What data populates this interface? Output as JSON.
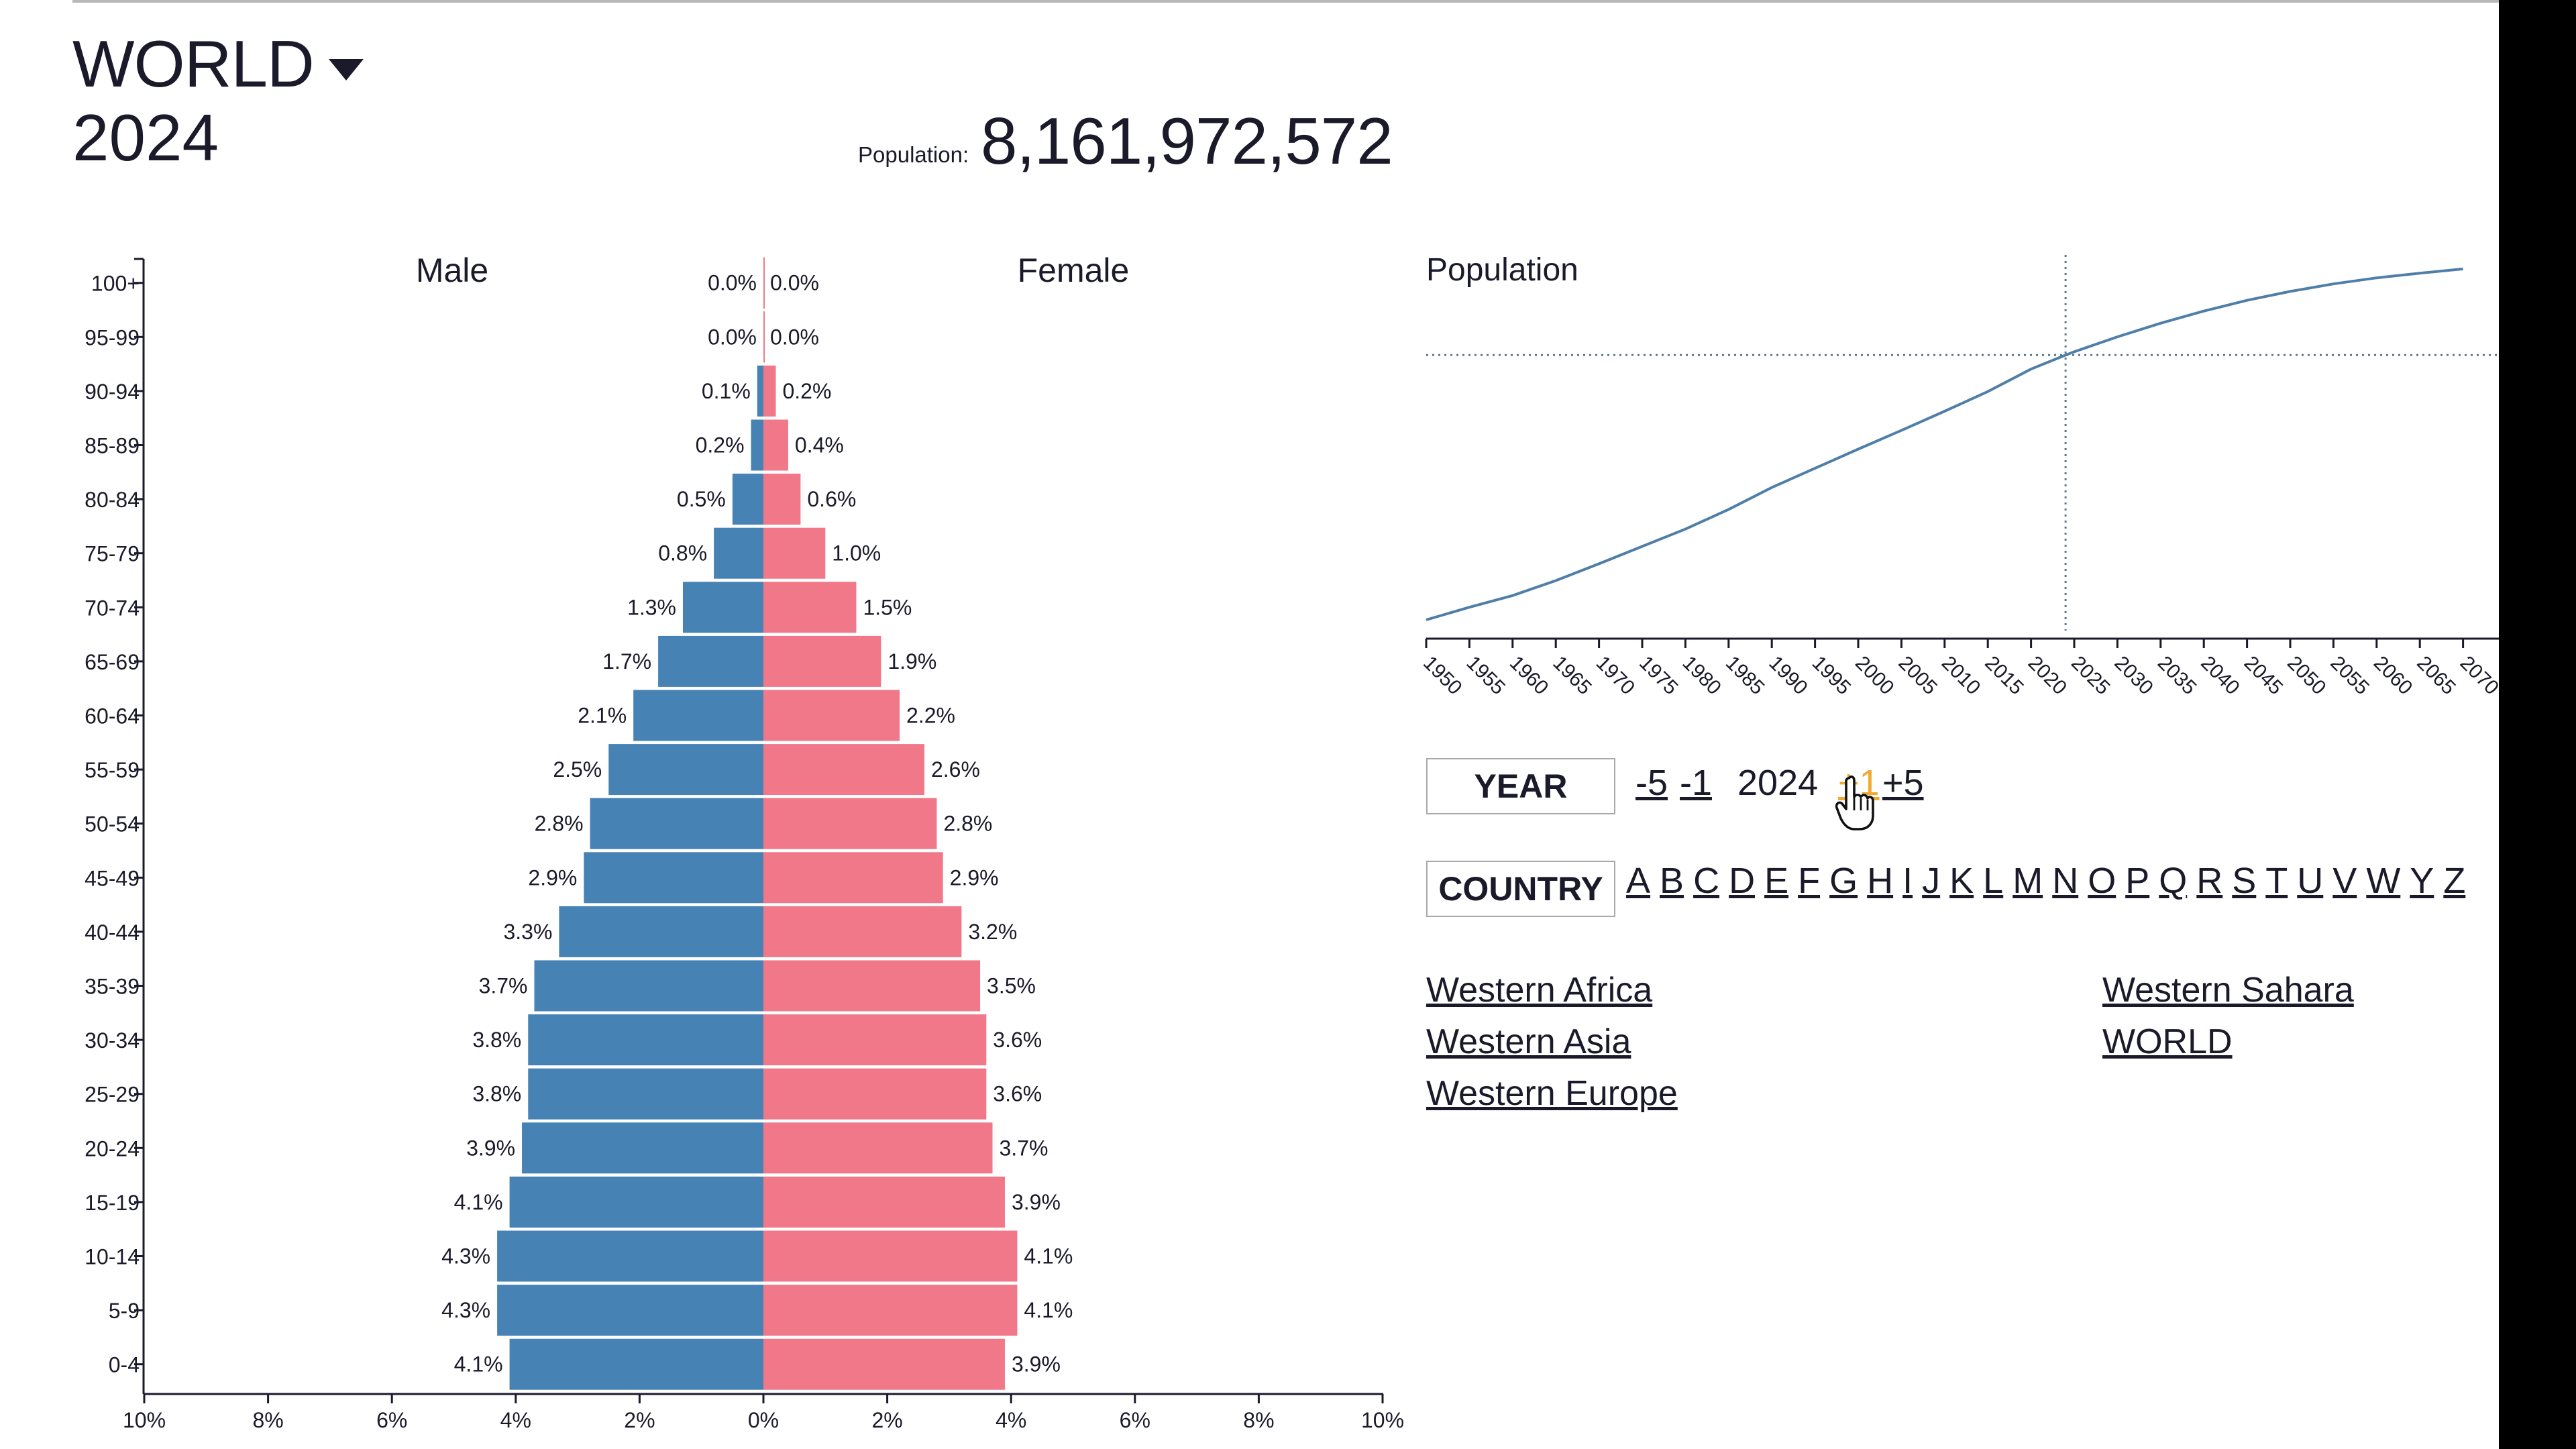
{
  "header": {
    "region": "WORLD",
    "year": "2024",
    "population_label": "Population:",
    "population_value": "8,161,972,572"
  },
  "chart_data": [
    {
      "type": "bar",
      "orientation": "horizontal",
      "title": "",
      "series": [
        {
          "name": "Male",
          "color": "#4682b4",
          "values": [
            4.1,
            4.3,
            4.3,
            4.1,
            3.9,
            3.8,
            3.8,
            3.7,
            3.3,
            2.9,
            2.8,
            2.5,
            2.1,
            1.7,
            1.3,
            0.8,
            0.5,
            0.2,
            0.1,
            0.0,
            0.0
          ]
        },
        {
          "name": "Female",
          "color": "#f07888",
          "values": [
            3.9,
            4.1,
            4.1,
            3.9,
            3.7,
            3.6,
            3.6,
            3.5,
            3.2,
            2.9,
            2.8,
            2.6,
            2.2,
            1.9,
            1.5,
            1.0,
            0.6,
            0.4,
            0.2,
            0.0,
            0.0
          ]
        }
      ],
      "categories": [
        "0-4",
        "5-9",
        "10-14",
        "15-19",
        "20-24",
        "25-29",
        "30-34",
        "35-39",
        "40-44",
        "45-49",
        "50-54",
        "55-59",
        "60-64",
        "65-69",
        "70-74",
        "75-79",
        "80-84",
        "85-89",
        "90-94",
        "95-99",
        "100+"
      ],
      "data_labels": {
        "male": [
          "4.1%",
          "4.3%",
          "4.3%",
          "4.1%",
          "3.9%",
          "3.8%",
          "3.8%",
          "3.7%",
          "3.3%",
          "2.9%",
          "2.8%",
          "2.5%",
          "2.1%",
          "1.7%",
          "1.3%",
          "0.8%",
          "0.5%",
          "0.2%",
          "0.1%",
          "0.0%",
          "0.0%"
        ],
        "female": [
          "3.9%",
          "4.1%",
          "4.1%",
          "3.9%",
          "3.7%",
          "3.6%",
          "3.6%",
          "3.5%",
          "3.2%",
          "2.9%",
          "2.8%",
          "2.6%",
          "2.2%",
          "1.9%",
          "1.5%",
          "1.0%",
          "0.6%",
          "0.4%",
          "0.2%",
          "0.0%",
          "0.0%"
        ]
      },
      "xlim": [
        -10,
        10
      ],
      "x_ticks": [
        "10%",
        "8%",
        "6%",
        "4%",
        "2%",
        "0%",
        "2%",
        "4%",
        "6%",
        "8%",
        "10%"
      ],
      "x_tick_values": [
        -10,
        -8,
        -6,
        -4,
        -2,
        0,
        2,
        4,
        6,
        8,
        10
      ]
    },
    {
      "type": "line",
      "title": "Population",
      "xlabel": "",
      "ylabel": "",
      "line_color": "#4f7fa8",
      "x": [
        1950,
        1955,
        1960,
        1965,
        1970,
        1975,
        1980,
        1985,
        1990,
        1995,
        2000,
        2005,
        2010,
        2015,
        2020,
        2024,
        2025,
        2030,
        2035,
        2040,
        2045,
        2050,
        2055,
        2060,
        2065,
        2070
      ],
      "y": [
        2.5,
        2.77,
        3.02,
        3.34,
        3.7,
        4.07,
        4.44,
        4.86,
        5.33,
        5.74,
        6.15,
        6.55,
        6.96,
        7.38,
        7.86,
        8.16,
        8.23,
        8.55,
        8.84,
        9.1,
        9.33,
        9.52,
        9.68,
        9.81,
        9.91,
        10.0
      ],
      "ylim": [
        2.3,
        10.3
      ],
      "x_ticks": [
        "1950",
        "1955",
        "1960",
        "1965",
        "1970",
        "1975",
        "1980",
        "1985",
        "1990",
        "1995",
        "2000",
        "2005",
        "2010",
        "2015",
        "2020",
        "2025",
        "2030",
        "2035",
        "2040",
        "2045",
        "2050",
        "2055",
        "2060",
        "2065",
        "2070"
      ],
      "marker_year": 2024,
      "marker_value": 8.16
    }
  ],
  "year_control": {
    "label": "YEAR",
    "minus5": "-5",
    "minus1": "-1",
    "current": "2024",
    "plus1": "+1",
    "plus5": "+5"
  },
  "country_control": {
    "label": "COUNTRY",
    "letters": [
      "A",
      "B",
      "C",
      "D",
      "E",
      "F",
      "G",
      "H",
      "I",
      "J",
      "K",
      "L",
      "M",
      "N",
      "O",
      "P",
      "Q",
      "R",
      "S",
      "T",
      "U",
      "V",
      "W",
      "Y",
      "Z"
    ]
  },
  "country_links": {
    "western_africa": "Western Africa",
    "western_asia": "Western Asia",
    "western_europe": "Western Europe",
    "western_sahara": "Western Sahara",
    "world": "WORLD"
  },
  "colors": {
    "male": "#4682b4",
    "female": "#f07888",
    "accent": "#f0a830"
  }
}
